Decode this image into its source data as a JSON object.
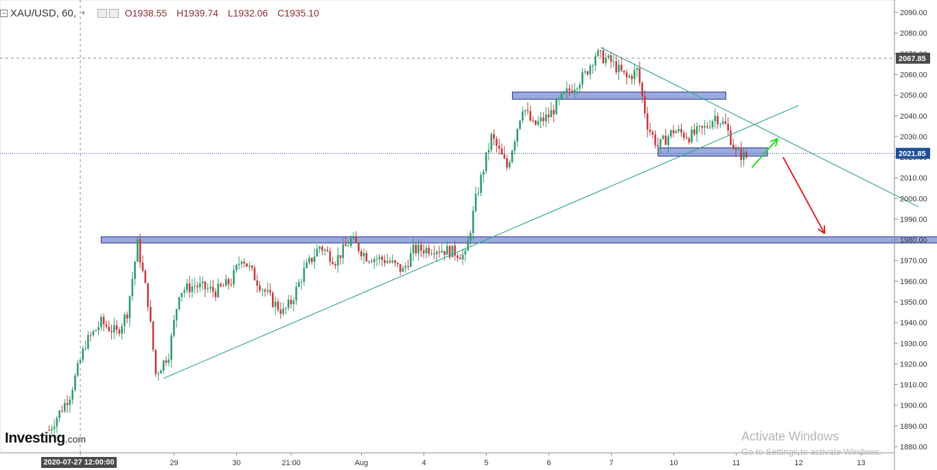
{
  "header": {
    "symbol": "XAU/USD, 60,",
    "open": "O1938.55",
    "high": "H1939.74",
    "low": "L1932.06",
    "close": "C1935.10"
  },
  "branding": {
    "logo_main": "Investing",
    "logo_suffix": ".com"
  },
  "watermark": {
    "line1": "Activate Windows",
    "line2": "Go to Settings to activate Windows."
  },
  "crosshair": {
    "time_label": "2020-07-27 12:00:00",
    "price_label": "2067.85"
  },
  "last_price": {
    "label": "2021.85"
  },
  "colors": {
    "up": "#2e9b6a",
    "down": "#c23b3b",
    "zone_fill": "#8a9ad8",
    "zone_stroke": "#1f2f86",
    "trend": "#3aa88b",
    "arrow_up": "#22dd22",
    "arrow_down": "#e02020",
    "price_tag": "#1f4e96",
    "crosshair_tag": "#4a4a4a"
  },
  "chart_data": {
    "type": "candlestick",
    "symbol": "XAU/USD",
    "timeframe": "60",
    "ylim": [
      1877,
      2096
    ],
    "y_ticks": [
      1880,
      1890,
      1900,
      1910,
      1920,
      1930,
      1940,
      1950,
      1960,
      1970,
      1980,
      1990,
      2000,
      2010,
      2020,
      2030,
      2040,
      2050,
      2060,
      2070,
      2080,
      2090
    ],
    "x_labels": [
      "2020-07-27 12:00:00",
      "29",
      "30",
      "21:00",
      "Aug",
      "4",
      "5",
      "6",
      "7",
      "10",
      "11",
      "12",
      "13"
    ],
    "x_label_positions": [
      "2020-07-27 12:00",
      "2020-07-29",
      "2020-07-30",
      "2020-07-30 21:00",
      "2020-08-03",
      "2020-08-04",
      "2020-08-05",
      "2020-08-06",
      "2020-08-07",
      "2020-08-10",
      "2020-08-11",
      "2020-08-12",
      "2020-08-13"
    ],
    "last_price": 2021.85,
    "crosshair": {
      "time": "2020-07-27 12:00:00",
      "price": 2067.85
    },
    "path_keypoints": [
      [
        "2020-07-27 00:00",
        1888
      ],
      [
        "2020-07-27 08:00",
        1905
      ],
      [
        "2020-07-27 14:00",
        1930
      ],
      [
        "2020-07-27 20:00",
        1940
      ],
      [
        "2020-07-28 02:00",
        1935
      ],
      [
        "2020-07-28 06:00",
        1945
      ],
      [
        "2020-07-28 10:00",
        1978
      ],
      [
        "2020-07-28 14:00",
        1950
      ],
      [
        "2020-07-28 17:00",
        1915
      ],
      [
        "2020-07-28 22:00",
        1925
      ],
      [
        "2020-07-29 02:00",
        1955
      ],
      [
        "2020-07-29 08:00",
        1958
      ],
      [
        "2020-07-29 16:00",
        1955
      ],
      [
        "2020-07-29 22:00",
        1960
      ],
      [
        "2020-07-30 02:00",
        1972
      ],
      [
        "2020-07-30 08:00",
        1960
      ],
      [
        "2020-07-30 14:00",
        1950
      ],
      [
        "2020-07-30 18:00",
        1945
      ],
      [
        "2020-07-30 21:00",
        1950
      ],
      [
        "2020-07-31 02:00",
        1965
      ],
      [
        "2020-07-31 08:00",
        1977
      ],
      [
        "2020-07-31 14:00",
        1970
      ],
      [
        "2020-07-31 20:00",
        1980
      ],
      [
        "2020-08-03 02:00",
        1972
      ],
      [
        "2020-08-03 10:00",
        1970
      ],
      [
        "2020-08-03 16:00",
        1965
      ],
      [
        "2020-08-03 20:00",
        1975
      ],
      [
        "2020-08-04 04:00",
        1976
      ],
      [
        "2020-08-04 12:00",
        1974
      ],
      [
        "2020-08-04 16:00",
        1972
      ],
      [
        "2020-08-04 20:00",
        2000
      ],
      [
        "2020-08-05 02:00",
        2030
      ],
      [
        "2020-08-05 08:00",
        2015
      ],
      [
        "2020-08-05 14:00",
        2045
      ],
      [
        "2020-08-05 18:00",
        2035
      ],
      [
        "2020-08-06 00:00",
        2040
      ],
      [
        "2020-08-06 06:00",
        2050
      ],
      [
        "2020-08-06 14:00",
        2060
      ],
      [
        "2020-08-06 18:00",
        2070
      ],
      [
        "2020-08-07 00:00",
        2066
      ],
      [
        "2020-08-07 06:00",
        2058
      ],
      [
        "2020-08-07 10:00",
        2062
      ],
      [
        "2020-08-07 14:00",
        2035
      ],
      [
        "2020-08-07 18:00",
        2025
      ],
      [
        "2020-08-10 00:00",
        2033
      ],
      [
        "2020-08-10 06:00",
        2030
      ],
      [
        "2020-08-10 12:00",
        2034
      ],
      [
        "2020-08-10 16:00",
        2040
      ],
      [
        "2020-08-10 20:00",
        2035
      ],
      [
        "2020-08-11 00:00",
        2022
      ],
      [
        "2020-08-11 04:00",
        2020
      ]
    ],
    "zones": [
      {
        "from": "2020-07-27 20:00",
        "to": "2020-08-14 11:00",
        "low": 1978.5,
        "high": 1981.5
      },
      {
        "from": "2020-08-05 10:00",
        "to": "2020-08-10 20:00",
        "low": 2048,
        "high": 2051.5
      },
      {
        "from": "2020-08-07 18:00",
        "to": "2020-08-11 12:00",
        "low": 2020.5,
        "high": 2024.5
      }
    ],
    "trendlines": [
      {
        "from": [
          "2020-07-28 20:00",
          1913
        ],
        "to": [
          "2020-08-12 00:00",
          2045
        ]
      },
      {
        "from": [
          "2020-08-06 20:00",
          2073
        ],
        "to": [
          "2020-08-13 22:00",
          1996
        ]
      }
    ],
    "arrows": [
      {
        "direction": "up",
        "from": [
          "2020-08-11 06:00",
          2015
        ],
        "to": [
          "2020-08-11 16:00",
          2029
        ]
      },
      {
        "direction": "down",
        "from": [
          "2020-08-11 18:00",
          2020
        ],
        "to": [
          "2020-08-12 10:00",
          1983
        ]
      }
    ]
  }
}
